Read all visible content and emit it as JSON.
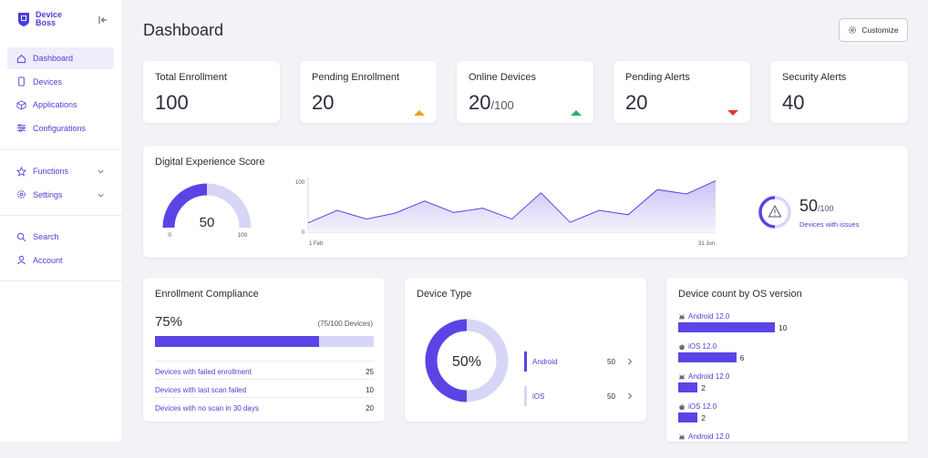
{
  "brand": {
    "line1": "Device",
    "line2": "Boss"
  },
  "sidebar": {
    "main_items": [
      {
        "label": "Dashboard",
        "icon": "home-icon",
        "active": true
      },
      {
        "label": "Devices",
        "icon": "device-icon"
      },
      {
        "label": "Applications",
        "icon": "box-icon"
      },
      {
        "label": "Configurations",
        "icon": "sliders-icon"
      }
    ],
    "group_items": [
      {
        "label": "Functions",
        "icon": "star-icon"
      },
      {
        "label": "Settings",
        "icon": "gear-icon"
      }
    ],
    "bottom_items": [
      {
        "label": "Search",
        "icon": "search-icon"
      },
      {
        "label": "Account",
        "icon": "user-icon"
      }
    ]
  },
  "header": {
    "title": "Dashboard",
    "customize_label": "Customize"
  },
  "stats": [
    {
      "label": "Total Enrollment",
      "value": "100",
      "sub": "",
      "trend": ""
    },
    {
      "label": "Pending Enrollment",
      "value": "20",
      "sub": "",
      "trend": "up-orange"
    },
    {
      "label": "Online Devices",
      "value": "20",
      "sub": "/100",
      "trend": "up-green"
    },
    {
      "label": "Pending Alerts",
      "value": "20",
      "sub": "",
      "trend": "down-red"
    },
    {
      "label": "Security Alerts",
      "value": "40",
      "sub": "",
      "trend": ""
    }
  ],
  "dex": {
    "title": "Digital Experience Score",
    "gauge": {
      "value": 50,
      "min": "0",
      "max": "100",
      "label": "50"
    },
    "issues": {
      "value": "50",
      "total": "/100",
      "caption": "Devices with issues",
      "fraction": 0.5
    }
  },
  "chart_data": {
    "type": "area",
    "x_start_label": "1 Feb",
    "x_end_label": "31 Jun",
    "ylim": [
      0,
      100
    ],
    "y_ticks": [
      "0",
      "100"
    ],
    "values": [
      17,
      40,
      24,
      35,
      57,
      36,
      44,
      24,
      72,
      18,
      40,
      32,
      78,
      70,
      94
    ],
    "colors": {
      "line": "#5b44e6",
      "fill_top": "#c9c2f5",
      "fill_bottom": "#f5f3fd"
    }
  },
  "compliance": {
    "title": "Enrollment Compliance",
    "percent_label": "75%",
    "percent": 0.75,
    "count_label": "(75/100 Devices)",
    "rows": [
      {
        "label": "Devices with failed enrollment",
        "value": "25"
      },
      {
        "label": "Devices with last scan failed",
        "value": "10"
      },
      {
        "label": "Devices with no scan in 30 days",
        "value": "20"
      }
    ]
  },
  "device_type": {
    "title": "Device Type",
    "center_label": "50%",
    "fraction": 0.5,
    "items": [
      {
        "label": "Android",
        "value": "50",
        "color": "#5b44e6"
      },
      {
        "label": "iOS",
        "value": "50",
        "color": "#d8d6f7"
      }
    ]
  },
  "os_versions": {
    "title": "Device count by OS version",
    "max": 10,
    "items": [
      {
        "label": "Android 12.0",
        "platform": "android-icon",
        "value": "10",
        "count": 10
      },
      {
        "label": "iOS 12.0",
        "platform": "apple-icon",
        "value": "6",
        "count": 6
      },
      {
        "label": "Android 12.0",
        "platform": "android-icon",
        "value": "2",
        "count": 2
      },
      {
        "label": "iOS 12.0",
        "platform": "apple-icon",
        "value": "2",
        "count": 2
      },
      {
        "label": "Android 12.0",
        "platform": "android-icon",
        "value": "",
        "count": 0
      }
    ]
  },
  "colors": {
    "accent": "#5b44e6",
    "accent_light": "#d8d6f7",
    "nav_text": "#4a3fd6",
    "page_bg": "#f3f2f7"
  }
}
